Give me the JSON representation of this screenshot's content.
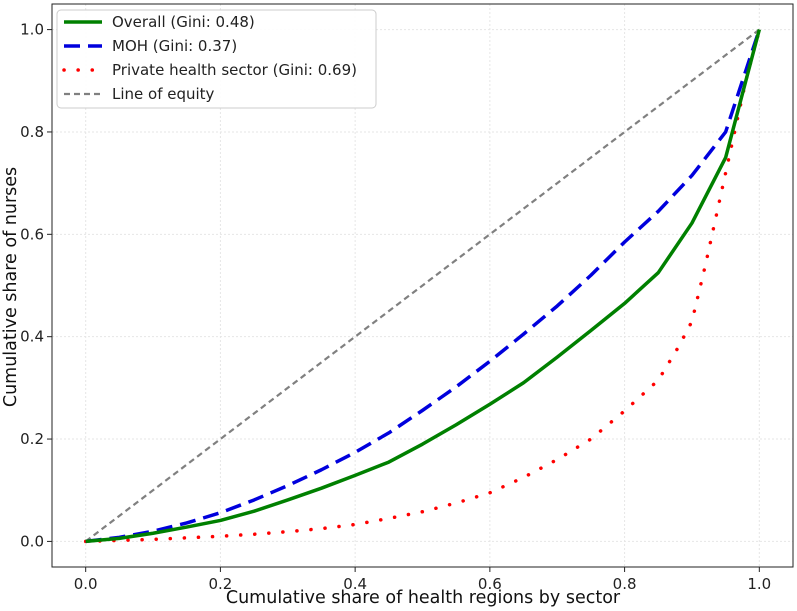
{
  "chart_data": {
    "type": "line",
    "title": "",
    "xlabel": "Cumulative share of health regions by sector",
    "ylabel": "Cumulative share of nurses",
    "xlim": [
      -0.05,
      1.05
    ],
    "ylim": [
      -0.05,
      1.05
    ],
    "xticks": [
      0.0,
      0.2,
      0.4,
      0.6,
      0.8,
      1.0
    ],
    "yticks": [
      0.0,
      0.2,
      0.4,
      0.6,
      0.8,
      1.0
    ],
    "xtick_labels": [
      "0.0",
      "0.2",
      "0.4",
      "0.6",
      "0.8",
      "1.0"
    ],
    "ytick_labels": [
      "0.0",
      "0.2",
      "0.4",
      "0.6",
      "0.8",
      "1.0"
    ],
    "grid": true,
    "legend_position": "top-left",
    "series": [
      {
        "name": "Overall (Gini: 0.48)",
        "style": "solid",
        "color": "#008000",
        "x": [
          0,
          0.05,
          0.1,
          0.15,
          0.2,
          0.25,
          0.3,
          0.35,
          0.4,
          0.45,
          0.5,
          0.55,
          0.6,
          0.65,
          0.7,
          0.75,
          0.8,
          0.85,
          0.9,
          0.95,
          1.0
        ],
        "y": [
          0,
          0.006,
          0.016,
          0.028,
          0.041,
          0.059,
          0.081,
          0.104,
          0.129,
          0.155,
          0.19,
          0.228,
          0.268,
          0.31,
          0.36,
          0.412,
          0.465,
          0.525,
          0.622,
          0.75,
          1.0
        ]
      },
      {
        "name": "MOH (Gini: 0.37)",
        "style": "dashed",
        "color": "#0000dd",
        "x": [
          0,
          0.05,
          0.1,
          0.15,
          0.2,
          0.25,
          0.3,
          0.35,
          0.4,
          0.45,
          0.5,
          0.55,
          0.6,
          0.65,
          0.7,
          0.75,
          0.8,
          0.85,
          0.9,
          0.95,
          1.0
        ],
        "y": [
          0,
          0.008,
          0.02,
          0.036,
          0.056,
          0.081,
          0.109,
          0.14,
          0.174,
          0.212,
          0.256,
          0.302,
          0.352,
          0.405,
          0.46,
          0.52,
          0.585,
          0.645,
          0.715,
          0.8,
          1.0
        ]
      },
      {
        "name": "Private health sector (Gini: 0.69)",
        "style": "dotted",
        "color": "#ff0000",
        "x": [
          0,
          0.05,
          0.1,
          0.15,
          0.2,
          0.25,
          0.3,
          0.35,
          0.4,
          0.45,
          0.5,
          0.55,
          0.6,
          0.65,
          0.7,
          0.75,
          0.8,
          0.85,
          0.88,
          0.9,
          0.92,
          0.94,
          0.96,
          0.98,
          1.0
        ],
        "y": [
          0,
          0.002,
          0.004,
          0.007,
          0.01,
          0.014,
          0.019,
          0.025,
          0.033,
          0.045,
          0.058,
          0.075,
          0.095,
          0.125,
          0.16,
          0.2,
          0.255,
          0.315,
          0.38,
          0.43,
          0.54,
          0.66,
          0.78,
          0.9,
          1.0
        ]
      },
      {
        "name": "Line of equity",
        "style": "dashed-gray",
        "color": "#808080",
        "x": [
          0,
          1.0
        ],
        "y": [
          0,
          1.0
        ]
      }
    ]
  }
}
